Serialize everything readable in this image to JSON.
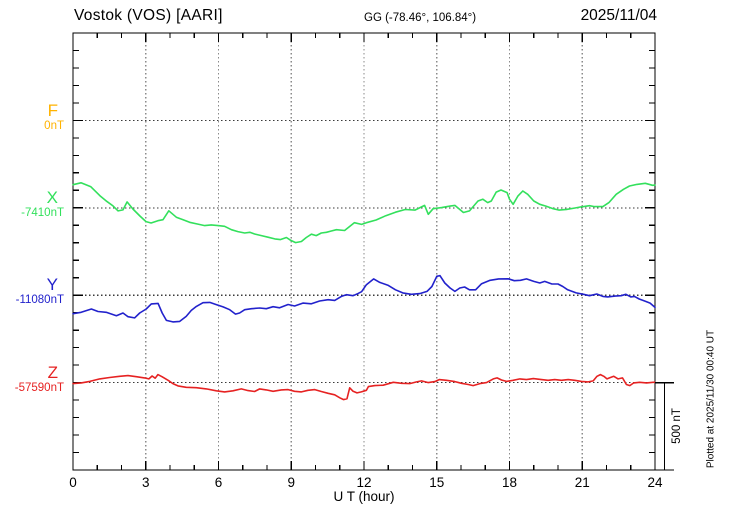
{
  "header": {
    "station_title": "Vostok (VOS)  [AARI]",
    "coords": "GG (-78.46°, 106.84°)",
    "date": "2025/11/04"
  },
  "footer": {
    "xlabel": "U T (hour)"
  },
  "side": {
    "scale_label": "500 nT",
    "plotted_at": "Plotted at 2025/11/30 00:40 UT"
  },
  "chart_data": {
    "type": "line",
    "title": "Vostok (VOS) [AARI] magnetogram for 2025/11/04",
    "xlabel": "U T (hour)",
    "x_range": [
      0,
      24
    ],
    "x_ticks": [
      0,
      3,
      6,
      9,
      12,
      15,
      18,
      21,
      24
    ],
    "x_minor_tick_step_hours": 1,
    "baseline_spacing_nT": 500,
    "y_minor_tick_nT": 100,
    "scale_bar_nT": 500,
    "grid": "dotted",
    "legend_position": "left-margin",
    "colors": {
      "axis": "#000000",
      "h_grid": "#3a3a3a",
      "v_grid": "#8a8a8a"
    },
    "series": [
      {
        "name": "F",
        "baseline_value_label": "0nT",
        "color": "#FFB300",
        "points": []
      },
      {
        "name": "X",
        "baseline_value_label": "-7410nT",
        "color": "#33E05C",
        "points": [
          [
            0,
            132
          ],
          [
            0.33,
            143
          ],
          [
            0.74,
            120
          ],
          [
            1.11,
            69
          ],
          [
            1.36,
            40
          ],
          [
            1.65,
            11
          ],
          [
            1.86,
            -18
          ],
          [
            2.06,
            -12
          ],
          [
            2.23,
            34
          ],
          [
            2.47,
            -7
          ],
          [
            2.76,
            -47
          ],
          [
            3.01,
            -79
          ],
          [
            3.22,
            -87
          ],
          [
            3.5,
            -74
          ],
          [
            3.71,
            -68
          ],
          [
            3.95,
            -17
          ],
          [
            4.26,
            -54
          ],
          [
            4.54,
            -68
          ],
          [
            4.81,
            -83
          ],
          [
            5.15,
            -93
          ],
          [
            5.43,
            -102
          ],
          [
            5.7,
            -98
          ],
          [
            5.98,
            -102
          ],
          [
            6.25,
            -106
          ],
          [
            6.53,
            -125
          ],
          [
            6.8,
            -136
          ],
          [
            7.08,
            -144
          ],
          [
            7.29,
            -140
          ],
          [
            7.49,
            -150
          ],
          [
            7.77,
            -159
          ],
          [
            8.04,
            -168
          ],
          [
            8.32,
            -178
          ],
          [
            8.55,
            -182
          ],
          [
            8.8,
            -170
          ],
          [
            8.96,
            -185
          ],
          [
            9.18,
            -199
          ],
          [
            9.42,
            -193
          ],
          [
            9.62,
            -170
          ],
          [
            9.83,
            -151
          ],
          [
            10.03,
            -159
          ],
          [
            10.24,
            -144
          ],
          [
            10.45,
            -140
          ],
          [
            10.65,
            -133
          ],
          [
            10.86,
            -125
          ],
          [
            11.2,
            -130
          ],
          [
            11.6,
            -85
          ],
          [
            11.9,
            -95
          ],
          [
            12.1,
            -85
          ],
          [
            12.5,
            -70
          ],
          [
            12.9,
            -45
          ],
          [
            13.3,
            -25
          ],
          [
            13.7,
            -10
          ],
          [
            14.1,
            -13
          ],
          [
            14.5,
            14
          ],
          [
            14.65,
            -37
          ],
          [
            14.85,
            -5
          ],
          [
            15.2,
            1
          ],
          [
            15.55,
            10
          ],
          [
            15.75,
            14
          ],
          [
            16.1,
            -27
          ],
          [
            16.35,
            -18
          ],
          [
            16.7,
            39
          ],
          [
            16.9,
            49
          ],
          [
            17.1,
            30
          ],
          [
            17.25,
            39
          ],
          [
            17.45,
            90
          ],
          [
            17.65,
            102
          ],
          [
            17.9,
            87
          ],
          [
            18.0,
            49
          ],
          [
            18.15,
            20
          ],
          [
            18.35,
            68
          ],
          [
            18.55,
            96
          ],
          [
            18.75,
            77
          ],
          [
            19.0,
            39
          ],
          [
            19.25,
            20
          ],
          [
            19.5,
            10
          ],
          [
            19.8,
            -5
          ],
          [
            20.05,
            -13
          ],
          [
            20.35,
            -9
          ],
          [
            20.7,
            -1
          ],
          [
            20.95,
            5
          ],
          [
            21.3,
            12
          ],
          [
            21.5,
            7
          ],
          [
            21.85,
            7
          ],
          [
            22.1,
            30
          ],
          [
            22.4,
            77
          ],
          [
            22.7,
            106
          ],
          [
            22.95,
            125
          ],
          [
            23.25,
            134
          ],
          [
            23.6,
            140
          ],
          [
            23.9,
            129
          ],
          [
            24,
            130
          ]
        ]
      },
      {
        "name": "Y",
        "baseline_value_label": "-11080nT",
        "color": "#2222CC",
        "points": [
          [
            0,
            -106
          ],
          [
            0.34,
            -98
          ],
          [
            0.76,
            -79
          ],
          [
            1.03,
            -93
          ],
          [
            1.37,
            -98
          ],
          [
            1.79,
            -117
          ],
          [
            2.06,
            -102
          ],
          [
            2.27,
            -123
          ],
          [
            2.54,
            -130
          ],
          [
            2.75,
            -102
          ],
          [
            3.02,
            -79
          ],
          [
            3.23,
            -50
          ],
          [
            3.51,
            -47
          ],
          [
            3.68,
            -102
          ],
          [
            3.85,
            -144
          ],
          [
            4.12,
            -153
          ],
          [
            4.4,
            -150
          ],
          [
            4.67,
            -121
          ],
          [
            4.88,
            -87
          ],
          [
            5.09,
            -64
          ],
          [
            5.36,
            -43
          ],
          [
            5.64,
            -41
          ],
          [
            5.91,
            -54
          ],
          [
            6.19,
            -67
          ],
          [
            6.46,
            -83
          ],
          [
            6.7,
            -108
          ],
          [
            6.87,
            -102
          ],
          [
            7.08,
            -83
          ],
          [
            7.36,
            -77
          ],
          [
            7.7,
            -73
          ],
          [
            7.97,
            -77
          ],
          [
            8.25,
            -66
          ],
          [
            8.52,
            -72
          ],
          [
            8.87,
            -53
          ],
          [
            9.14,
            -62
          ],
          [
            9.48,
            -45
          ],
          [
            9.83,
            -49
          ],
          [
            10.17,
            -33
          ],
          [
            10.52,
            -26
          ],
          [
            10.79,
            -30
          ],
          [
            11.07,
            -7
          ],
          [
            11.27,
            3
          ],
          [
            11.55,
            -3
          ],
          [
            11.75,
            9
          ],
          [
            11.9,
            20
          ],
          [
            12.1,
            60
          ],
          [
            12.4,
            93
          ],
          [
            12.65,
            73
          ],
          [
            13.0,
            56
          ],
          [
            13.3,
            31
          ],
          [
            13.6,
            13
          ],
          [
            13.95,
            5
          ],
          [
            14.3,
            9
          ],
          [
            14.6,
            22
          ],
          [
            14.8,
            50
          ],
          [
            15.0,
            108
          ],
          [
            15.13,
            112
          ],
          [
            15.33,
            70
          ],
          [
            15.55,
            41
          ],
          [
            15.75,
            22
          ],
          [
            15.95,
            41
          ],
          [
            16.15,
            47
          ],
          [
            16.35,
            31
          ],
          [
            16.6,
            31
          ],
          [
            16.85,
            66
          ],
          [
            17.2,
            85
          ],
          [
            17.55,
            93
          ],
          [
            17.95,
            94
          ],
          [
            18.2,
            83
          ],
          [
            18.45,
            85
          ],
          [
            18.7,
            93
          ],
          [
            19.0,
            79
          ],
          [
            19.25,
            70
          ],
          [
            19.45,
            79
          ],
          [
            19.75,
            64
          ],
          [
            20.0,
            64
          ],
          [
            20.2,
            50
          ],
          [
            20.4,
            31
          ],
          [
            20.75,
            13
          ],
          [
            21.05,
            5
          ],
          [
            21.3,
            -3
          ],
          [
            21.6,
            7
          ],
          [
            21.85,
            -7
          ],
          [
            22.05,
            -10
          ],
          [
            22.35,
            -5
          ],
          [
            22.6,
            -3
          ],
          [
            22.8,
            5
          ],
          [
            23.0,
            -10
          ],
          [
            23.15,
            -7
          ],
          [
            23.35,
            -22
          ],
          [
            23.6,
            -35
          ],
          [
            23.8,
            -45
          ],
          [
            24,
            -70
          ]
        ]
      },
      {
        "name": "Z",
        "baseline_value_label": "-57590nT",
        "color": "#E62222",
        "points": [
          [
            0,
            -6
          ],
          [
            0.34,
            -2
          ],
          [
            0.69,
            7
          ],
          [
            1.1,
            21
          ],
          [
            1.51,
            29
          ],
          [
            1.92,
            36
          ],
          [
            2.27,
            40
          ],
          [
            2.61,
            34
          ],
          [
            2.95,
            27
          ],
          [
            3.13,
            21
          ],
          [
            3.26,
            38
          ],
          [
            3.39,
            25
          ],
          [
            3.5,
            46
          ],
          [
            3.68,
            33
          ],
          [
            3.92,
            13
          ],
          [
            4.12,
            -6
          ],
          [
            4.33,
            -19
          ],
          [
            4.67,
            -27
          ],
          [
            5.08,
            -29
          ],
          [
            5.5,
            -36
          ],
          [
            5.91,
            -47
          ],
          [
            6.25,
            -53
          ],
          [
            6.6,
            -47
          ],
          [
            6.94,
            -36
          ],
          [
            7.22,
            -46
          ],
          [
            7.49,
            -51
          ],
          [
            7.7,
            -36
          ],
          [
            7.97,
            -42
          ],
          [
            8.25,
            -50
          ],
          [
            8.59,
            -42
          ],
          [
            8.87,
            -40
          ],
          [
            9.14,
            -50
          ],
          [
            9.42,
            -53
          ],
          [
            9.69,
            -44
          ],
          [
            9.97,
            -40
          ],
          [
            10.24,
            -51
          ],
          [
            10.52,
            -61
          ],
          [
            10.79,
            -70
          ],
          [
            11.0,
            -87
          ],
          [
            11.16,
            -97
          ],
          [
            11.3,
            -92
          ],
          [
            11.41,
            -30
          ],
          [
            11.55,
            -50
          ],
          [
            11.71,
            -59
          ],
          [
            11.89,
            -53
          ],
          [
            12.1,
            -44
          ],
          [
            12.18,
            -23
          ],
          [
            12.45,
            -17
          ],
          [
            12.79,
            -15
          ],
          [
            13.21,
            2
          ],
          [
            13.55,
            -4
          ],
          [
            13.89,
            -6
          ],
          [
            14.17,
            4
          ],
          [
            14.37,
            10
          ],
          [
            14.65,
            0
          ],
          [
            14.92,
            6
          ],
          [
            15.1,
            17
          ],
          [
            15.4,
            13
          ],
          [
            15.75,
            6
          ],
          [
            16.02,
            -4
          ],
          [
            16.3,
            -11
          ],
          [
            16.5,
            -17
          ],
          [
            16.78,
            -6
          ],
          [
            17.05,
            0
          ],
          [
            17.33,
            21
          ],
          [
            17.49,
            27
          ],
          [
            17.67,
            15
          ],
          [
            17.88,
            7
          ],
          [
            18.15,
            13
          ],
          [
            18.43,
            21
          ],
          [
            18.7,
            17
          ],
          [
            18.98,
            23
          ],
          [
            19.32,
            17
          ],
          [
            19.59,
            13
          ],
          [
            19.87,
            17
          ],
          [
            20.14,
            13
          ],
          [
            20.42,
            17
          ],
          [
            20.69,
            13
          ],
          [
            20.97,
            7
          ],
          [
            21.24,
            4
          ],
          [
            21.45,
            10
          ],
          [
            21.61,
            36
          ],
          [
            21.75,
            46
          ],
          [
            21.89,
            36
          ],
          [
            22.02,
            21
          ],
          [
            22.16,
            29
          ],
          [
            22.3,
            36
          ],
          [
            22.48,
            21
          ],
          [
            22.66,
            27
          ],
          [
            22.82,
            -11
          ],
          [
            22.96,
            -17
          ],
          [
            23.12,
            -2
          ],
          [
            23.37,
            2
          ],
          [
            23.65,
            -2
          ],
          [
            23.92,
            2
          ],
          [
            24,
            2
          ]
        ]
      }
    ]
  }
}
